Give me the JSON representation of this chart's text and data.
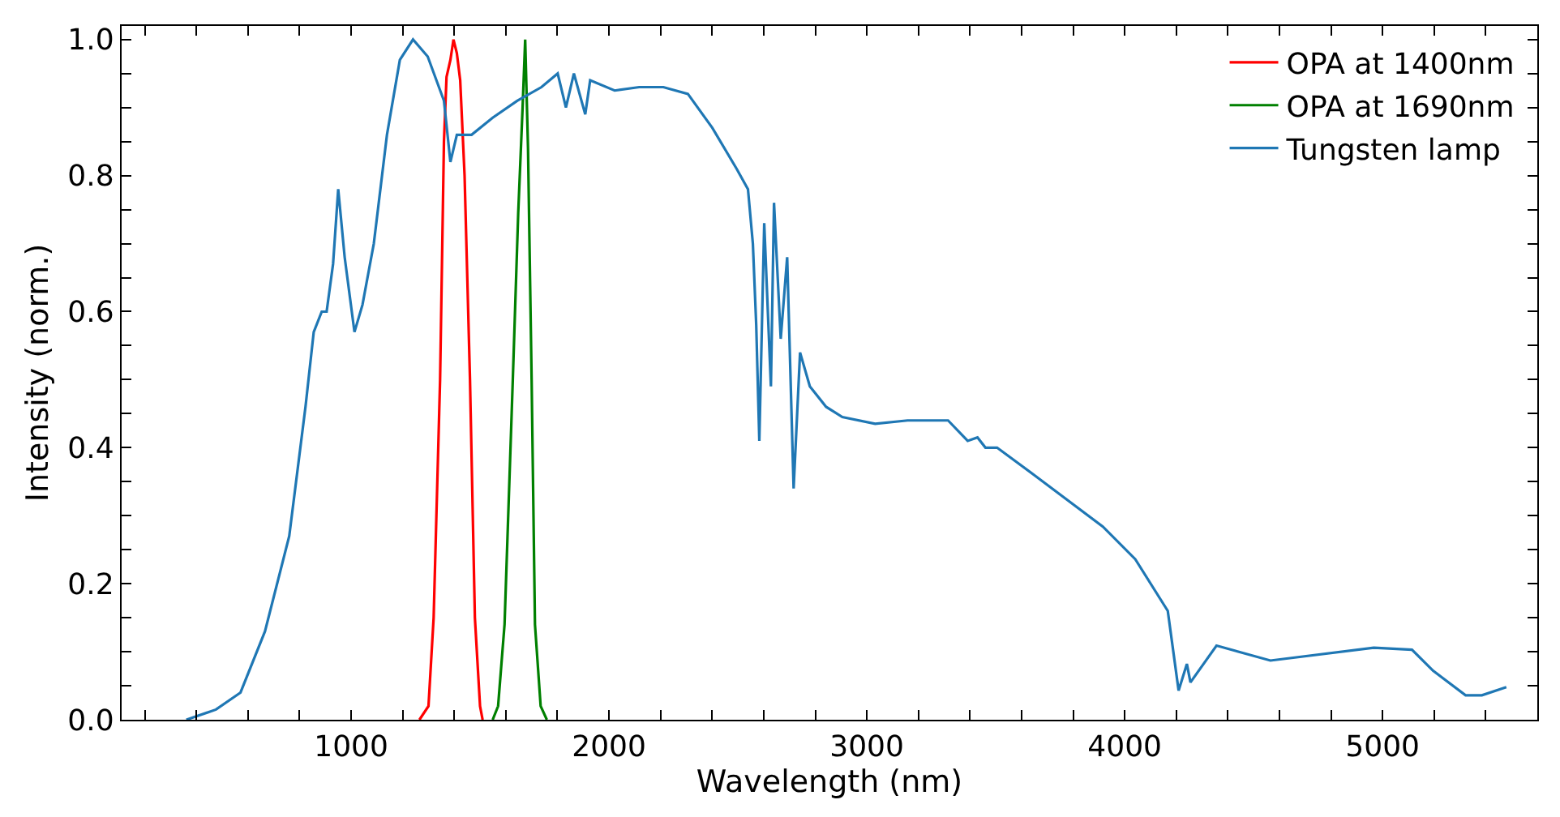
{
  "chart_data": {
    "type": "line",
    "xlabel": "Wavelength (nm)",
    "ylabel": "Intensity (norm.)",
    "xlim": [
      110,
      5600
    ],
    "ylim": [
      0,
      1.02
    ],
    "xticks": [
      {
        "value": 200,
        "label": null
      },
      {
        "value": 400,
        "label": null
      },
      {
        "value": 600,
        "label": null
      },
      {
        "value": 800,
        "label": null
      },
      1000,
      {
        "value": 1200,
        "label": null
      },
      {
        "value": 1400,
        "label": null
      },
      {
        "value": 1600,
        "label": null
      },
      {
        "value": 1800,
        "label": null
      },
      2000,
      {
        "value": 2200,
        "label": null
      },
      {
        "value": 2400,
        "label": null
      },
      {
        "value": 2600,
        "label": null
      },
      {
        "value": 2800,
        "label": null
      },
      3000,
      {
        "value": 3200,
        "label": null
      },
      {
        "value": 3400,
        "label": null
      },
      {
        "value": 3600,
        "label": null
      },
      {
        "value": 3800,
        "label": null
      },
      4000,
      {
        "value": 4200,
        "label": null
      },
      {
        "value": 4400,
        "label": null
      },
      {
        "value": 4600,
        "label": null
      },
      {
        "value": 4800,
        "label": null
      },
      5000,
      {
        "value": 5200,
        "label": null
      },
      {
        "value": 5400,
        "label": null
      }
    ],
    "yticks": [
      {
        "value": 0,
        "label": "0.0"
      },
      {
        "value": 0.05,
        "label": null
      },
      {
        "value": 0.1,
        "label": null
      },
      {
        "value": 0.15,
        "label": null
      },
      {
        "value": 0.2,
        "label": "0.2"
      },
      {
        "value": 0.25,
        "label": null
      },
      {
        "value": 0.3,
        "label": null
      },
      {
        "value": 0.35,
        "label": null
      },
      {
        "value": 0.4,
        "label": "0.4"
      },
      {
        "value": 0.45,
        "label": null
      },
      {
        "value": 0.5,
        "label": null
      },
      {
        "value": 0.55,
        "label": null
      },
      {
        "value": 0.6,
        "label": "0.6"
      },
      {
        "value": 0.65,
        "label": null
      },
      {
        "value": 0.7,
        "label": null
      },
      {
        "value": 0.75,
        "label": null
      },
      {
        "value": 0.8,
        "label": "0.8"
      },
      {
        "value": 0.85,
        "label": null
      },
      {
        "value": 0.9,
        "label": null
      },
      {
        "value": 0.95,
        "label": null
      },
      {
        "value": 1.0,
        "label": "1.0"
      }
    ],
    "legend": "top right",
    "marker": "none",
    "line_style": "solid",
    "series": [
      {
        "name": "OPA at 1400nm",
        "color": "#ff0000",
        "x": [
          1265,
          1300,
          1320,
          1345,
          1360,
          1370,
          1385,
          1397,
          1410,
          1423,
          1440,
          1461,
          1480,
          1500,
          1510
        ],
        "values": [
          0,
          0.02,
          0.15,
          0.5,
          0.85,
          0.945,
          0.97,
          1.0,
          0.98,
          0.94,
          0.8,
          0.5,
          0.15,
          0.02,
          0
        ]
      },
      {
        "name": "OPA at 1690nm",
        "color": "#008000",
        "x": [
          1549,
          1570,
          1595,
          1627,
          1648,
          1665,
          1675,
          1686,
          1700,
          1713,
          1735,
          1759
        ],
        "values": [
          0,
          0.02,
          0.14,
          0.5,
          0.745,
          0.9,
          1.0,
          0.84,
          0.5,
          0.14,
          0.02,
          0
        ]
      },
      {
        "name": "Tungsten lamp",
        "color": "#1f77b4",
        "x": [
          361,
          476,
          571,
          666,
          760,
          823,
          855,
          886,
          905,
          930,
          950,
          975,
          1013,
          1044,
          1088,
          1139,
          1189,
          1240,
          1297,
          1360,
          1385,
          1410,
          1467,
          1549,
          1644,
          1738,
          1801,
          1833,
          1864,
          1908,
          1927,
          2022,
          2117,
          2211,
          2306,
          2401,
          2495,
          2539,
          2558,
          2571,
          2583,
          2602,
          2628,
          2640,
          2666,
          2691,
          2716,
          2741,
          2779,
          2842,
          2905,
          3032,
          3158,
          3315,
          3391,
          3429,
          3460,
          3505,
          3662,
          3915,
          4041,
          4167,
          4209,
          4241,
          4255,
          4356,
          4565,
          4966,
          5114,
          5196,
          5322,
          5385,
          5480
        ],
        "values": [
          0,
          0.015,
          0.04,
          0.13,
          0.27,
          0.46,
          0.57,
          0.6,
          0.6,
          0.67,
          0.78,
          0.68,
          0.57,
          0.61,
          0.7,
          0.86,
          0.97,
          1.0,
          0.975,
          0.91,
          0.82,
          0.86,
          0.86,
          0.885,
          0.91,
          0.93,
          0.95,
          0.9,
          0.95,
          0.89,
          0.94,
          0.925,
          0.93,
          0.93,
          0.92,
          0.87,
          0.81,
          0.78,
          0.7,
          0.58,
          0.41,
          0.73,
          0.49,
          0.76,
          0.56,
          0.68,
          0.34,
          0.54,
          0.49,
          0.46,
          0.445,
          0.435,
          0.44,
          0.44,
          0.41,
          0.415,
          0.4,
          0.4,
          0.356,
          0.284,
          0.236,
          0.16,
          0.043,
          0.082,
          0.055,
          0.109,
          0.087,
          0.106,
          0.103,
          0.072,
          0.036,
          0.036,
          0.048
        ]
      }
    ]
  }
}
